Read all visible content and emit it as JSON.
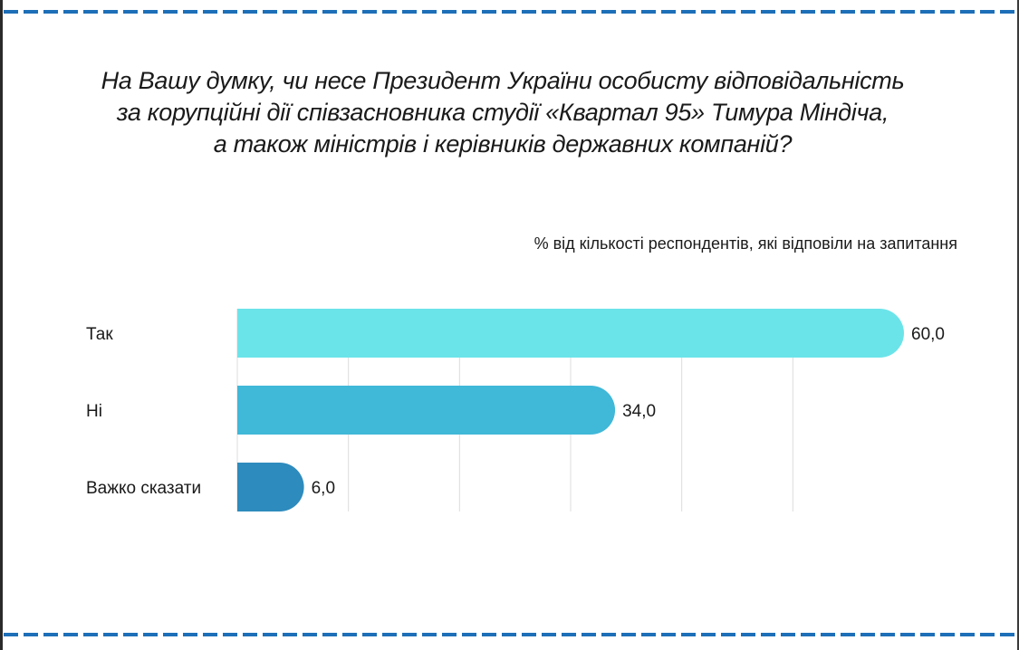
{
  "chart_data": {
    "type": "bar",
    "orientation": "horizontal",
    "title_lines": [
      "На Вашу думку, чи несе Президент України особисту відповідальність",
      "за корупційні дії співзасновника студії «Квартал 95» Тимура Міндіча,",
      "а також міністрів і керівників державних компаній?"
    ],
    "subtitle": "% від кількості респондентів, які відповіли на запитання",
    "categories": [
      "Так",
      "Ні",
      "Важко сказати"
    ],
    "values": [
      60.0,
      34.0,
      6.0
    ],
    "value_labels": [
      "60,0",
      "34,0",
      "6,0"
    ],
    "colors": [
      "#6be4e9",
      "#40b8d8",
      "#2e8bbd"
    ],
    "xlim": [
      0,
      60
    ],
    "grid": true,
    "legend": "none"
  }
}
